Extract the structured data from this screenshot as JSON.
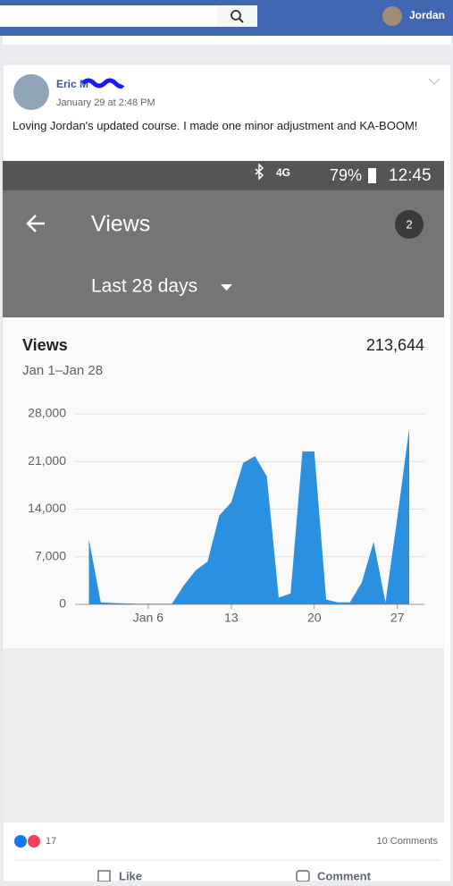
{
  "header": {
    "user": "Jordan"
  },
  "post": {
    "author": "Eric M",
    "date": "January 29 at 2:48 PM",
    "text": "Loving Jordan's updated course. I made one minor adjustment and KA-BOOM!",
    "phone": {
      "network": "4G",
      "battery": "79%",
      "time": "12:45",
      "title": "Views",
      "badge": "2",
      "range": "Last 28 days",
      "card_title": "Views",
      "total": "213,644",
      "period": "Jan 1–Jan 28"
    }
  },
  "chart_data": {
    "type": "area",
    "color": "#2b90e0",
    "x": [
      1,
      2,
      3,
      4,
      5,
      6,
      7,
      8,
      9,
      10,
      11,
      12,
      13,
      14,
      15,
      16,
      17,
      18,
      19,
      20,
      21,
      22,
      23,
      24,
      25,
      26,
      27,
      28
    ],
    "values": [
      9600,
      300,
      200,
      150,
      100,
      100,
      100,
      100,
      2800,
      5000,
      6300,
      13100,
      15000,
      20800,
      21800,
      18800,
      1000,
      1600,
      22500,
      22500,
      700,
      300,
      300,
      3200,
      9200,
      300,
      12800,
      25900
    ],
    "xlim": [
      1,
      28
    ],
    "xticks": [
      {
        "value": 6,
        "label": "Jan 6"
      },
      13,
      20,
      27
    ],
    "ylim": [
      0,
      28000
    ],
    "yticks": [
      0,
      {
        "value": 7000,
        "label": "7,000"
      },
      {
        "value": 14000,
        "label": "14,000"
      },
      {
        "value": 21000,
        "label": "21,000"
      },
      {
        "value": 28000,
        "label": "28,000"
      }
    ],
    "grid": true
  },
  "footer": {
    "reactions": "17",
    "comments": "10 Comments",
    "like": "Like",
    "comment": "Comment"
  }
}
